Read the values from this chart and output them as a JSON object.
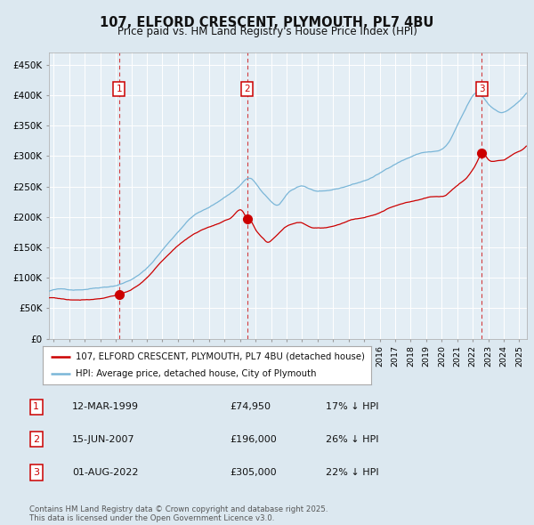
{
  "title": "107, ELFORD CRESCENT, PLYMOUTH, PL7 4BU",
  "subtitle": "Price paid vs. HM Land Registry's House Price Index (HPI)",
  "legend_red": "107, ELFORD CRESCENT, PLYMOUTH, PL7 4BU (detached house)",
  "legend_blue": "HPI: Average price, detached house, City of Plymouth",
  "footer": "Contains HM Land Registry data © Crown copyright and database right 2025.\nThis data is licensed under the Open Government Licence v3.0.",
  "transactions": [
    {
      "num": 1,
      "date": "12-MAR-1999",
      "price": "£74,950",
      "pct": "17% ↓ HPI",
      "year": 1999.2
    },
    {
      "num": 2,
      "date": "15-JUN-2007",
      "price": "£196,000",
      "pct": "26% ↓ HPI",
      "year": 2007.46
    },
    {
      "num": 3,
      "date": "01-AUG-2022",
      "price": "£305,000",
      "pct": "22% ↓ HPI",
      "year": 2022.58
    }
  ],
  "ylim": [
    0,
    470000
  ],
  "yticks": [
    0,
    50000,
    100000,
    150000,
    200000,
    250000,
    300000,
    350000,
    400000,
    450000
  ],
  "ytick_labels": [
    "£0",
    "£50K",
    "£100K",
    "£150K",
    "£200K",
    "£250K",
    "£300K",
    "£350K",
    "£400K",
    "£450K"
  ],
  "xlim_start": 1994.7,
  "xlim_end": 2025.5,
  "hpi_color": "#7ab6d8",
  "price_color": "#cc0000",
  "bg_color": "#dce8f0",
  "plot_bg": "#e4eef5",
  "grid_color": "#ffffff",
  "vline_color": "#cc0000",
  "marker_color": "#cc0000",
  "box_color": "#cc0000",
  "box_face": "#ffffff"
}
